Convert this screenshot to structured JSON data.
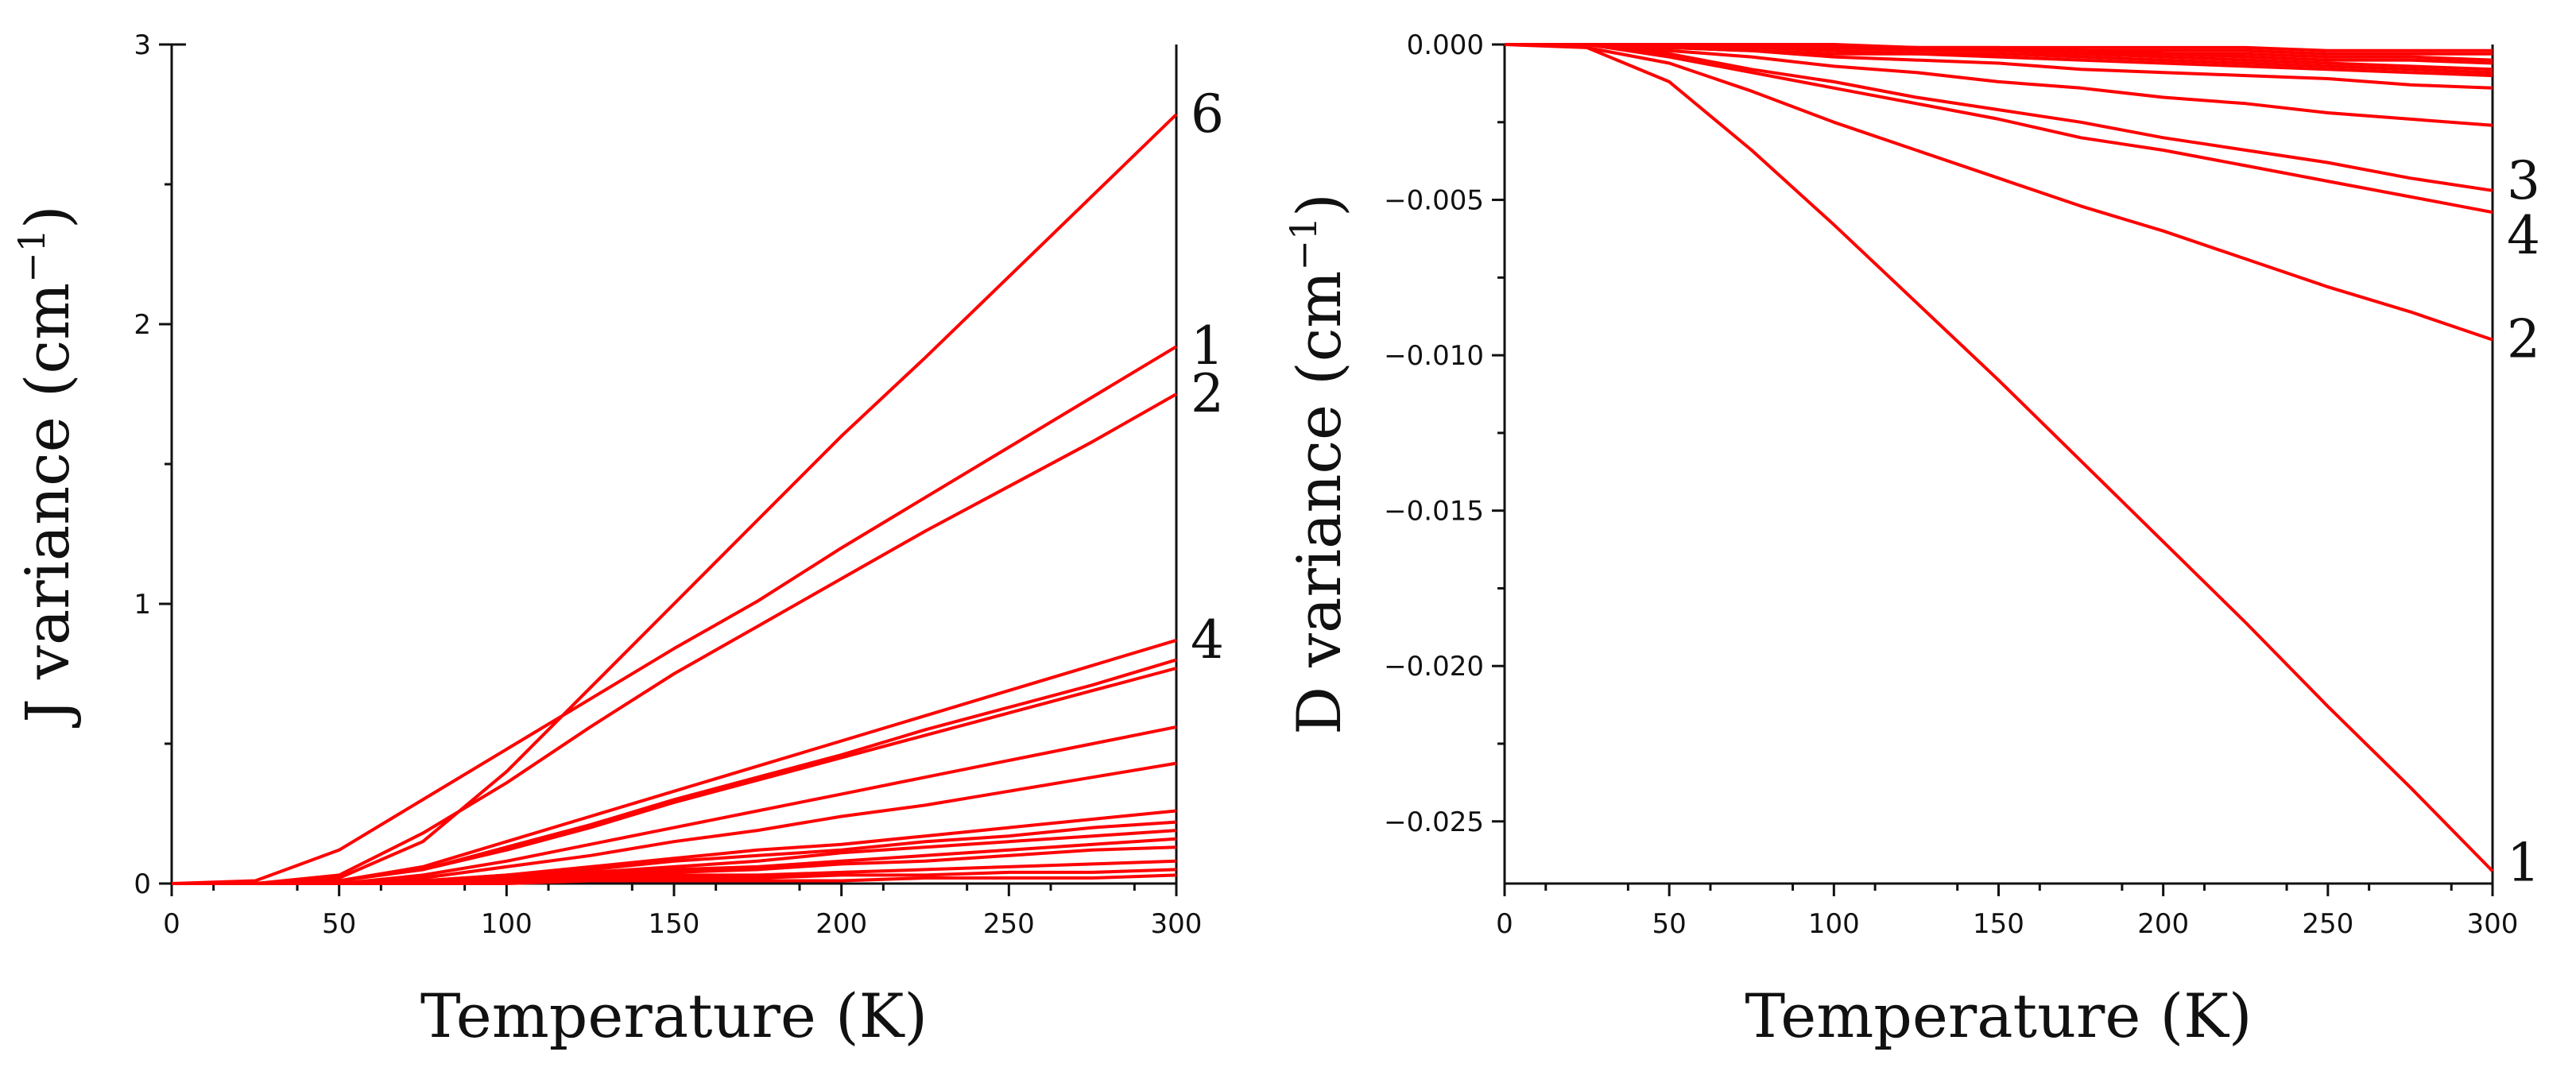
{
  "chart_data": [
    {
      "type": "line",
      "xlabel": "Temperature (K)",
      "ylabel": "J variance (cm",
      "ylabel_sup": "−1",
      "ylabel_close": ")",
      "xlim": [
        0,
        300
      ],
      "ylim": [
        0,
        3
      ],
      "xticks": [
        0,
        50,
        100,
        150,
        200,
        250,
        300
      ],
      "yticks": [
        0,
        1,
        2,
        3
      ],
      "xtick_labels": [
        "0",
        "50",
        "100",
        "150",
        "200",
        "250",
        "300"
      ],
      "ytick_labels": [
        "0",
        "1",
        "2",
        "3"
      ],
      "color": "#ff0000",
      "series": [
        {
          "name": "6",
          "x": [
            0,
            25,
            50,
            75,
            100,
            125,
            150,
            175,
            200,
            225,
            250,
            275,
            300
          ],
          "y": [
            0,
            0.0,
            0.02,
            0.15,
            0.4,
            0.7,
            1.0,
            1.3,
            1.6,
            1.88,
            2.17,
            2.46,
            2.75
          ]
        },
        {
          "name": "1",
          "x": [
            0,
            25,
            50,
            75,
            100,
            125,
            150,
            175,
            200,
            225,
            250,
            275,
            300
          ],
          "y": [
            0,
            0.01,
            0.12,
            0.3,
            0.48,
            0.66,
            0.84,
            1.01,
            1.2,
            1.38,
            1.56,
            1.74,
            1.92
          ]
        },
        {
          "name": "2",
          "x": [
            0,
            25,
            50,
            75,
            100,
            125,
            150,
            175,
            200,
            225,
            250,
            275,
            300
          ],
          "y": [
            0,
            0.0,
            0.03,
            0.18,
            0.36,
            0.56,
            0.75,
            0.92,
            1.09,
            1.26,
            1.42,
            1.58,
            1.75
          ]
        },
        {
          "name": "4",
          "x": [
            0,
            25,
            50,
            75,
            100,
            125,
            150,
            175,
            200,
            225,
            250,
            275,
            300
          ],
          "y": [
            0,
            0.0,
            0.01,
            0.06,
            0.15,
            0.24,
            0.33,
            0.42,
            0.51,
            0.6,
            0.69,
            0.78,
            0.87
          ]
        },
        {
          "name": "",
          "x": [
            0,
            25,
            50,
            75,
            100,
            125,
            150,
            175,
            200,
            225,
            250,
            275,
            300
          ],
          "y": [
            0,
            0.0,
            0.01,
            0.05,
            0.13,
            0.21,
            0.3,
            0.38,
            0.46,
            0.55,
            0.63,
            0.71,
            0.8
          ]
        },
        {
          "name": "",
          "x": [
            0,
            25,
            50,
            75,
            100,
            125,
            150,
            175,
            200,
            225,
            250,
            275,
            300
          ],
          "y": [
            0,
            0.0,
            0.01,
            0.05,
            0.12,
            0.2,
            0.29,
            0.37,
            0.45,
            0.53,
            0.61,
            0.69,
            0.77
          ]
        },
        {
          "name": "",
          "x": [
            0,
            25,
            50,
            75,
            100,
            125,
            150,
            175,
            200,
            225,
            250,
            275,
            300
          ],
          "y": [
            0,
            0.0,
            0.0,
            0.03,
            0.08,
            0.14,
            0.2,
            0.26,
            0.32,
            0.38,
            0.44,
            0.5,
            0.56
          ]
        },
        {
          "name": "",
          "x": [
            0,
            25,
            50,
            75,
            100,
            125,
            150,
            175,
            200,
            225,
            250,
            275,
            300
          ],
          "y": [
            0,
            0.0,
            0.0,
            0.02,
            0.06,
            0.1,
            0.15,
            0.19,
            0.24,
            0.28,
            0.33,
            0.38,
            0.43
          ]
        },
        {
          "name": "",
          "x": [
            0,
            25,
            50,
            75,
            100,
            125,
            150,
            175,
            200,
            225,
            250,
            275,
            300
          ],
          "y": [
            0,
            0.0,
            0.0,
            0.01,
            0.03,
            0.06,
            0.09,
            0.12,
            0.14,
            0.17,
            0.2,
            0.23,
            0.26
          ]
        },
        {
          "name": "",
          "x": [
            0,
            25,
            50,
            75,
            100,
            125,
            150,
            175,
            200,
            225,
            250,
            275,
            300
          ],
          "y": [
            0,
            0.0,
            0.0,
            0.01,
            0.03,
            0.05,
            0.08,
            0.1,
            0.12,
            0.15,
            0.17,
            0.2,
            0.22
          ]
        },
        {
          "name": "",
          "x": [
            0,
            25,
            50,
            75,
            100,
            125,
            150,
            175,
            200,
            225,
            250,
            275,
            300
          ],
          "y": [
            0,
            0.0,
            0.0,
            0.01,
            0.02,
            0.04,
            0.06,
            0.08,
            0.11,
            0.13,
            0.15,
            0.17,
            0.19
          ]
        },
        {
          "name": "",
          "x": [
            0,
            25,
            50,
            75,
            100,
            125,
            150,
            175,
            200,
            225,
            250,
            275,
            300
          ],
          "y": [
            0,
            0.0,
            0.0,
            0.01,
            0.02,
            0.03,
            0.05,
            0.06,
            0.08,
            0.1,
            0.12,
            0.14,
            0.16
          ]
        },
        {
          "name": "",
          "x": [
            0,
            25,
            50,
            75,
            100,
            125,
            150,
            175,
            200,
            225,
            250,
            275,
            300
          ],
          "y": [
            0,
            0.0,
            0.0,
            0.0,
            0.02,
            0.03,
            0.04,
            0.05,
            0.07,
            0.08,
            0.1,
            0.12,
            0.13
          ]
        },
        {
          "name": "",
          "x": [
            0,
            25,
            50,
            75,
            100,
            125,
            150,
            175,
            200,
            225,
            250,
            275,
            300
          ],
          "y": [
            0,
            0.0,
            0.0,
            0.0,
            0.01,
            0.02,
            0.03,
            0.03,
            0.04,
            0.05,
            0.06,
            0.07,
            0.08
          ]
        },
        {
          "name": "",
          "x": [
            0,
            25,
            50,
            75,
            100,
            125,
            150,
            175,
            200,
            225,
            250,
            275,
            300
          ],
          "y": [
            0,
            0.0,
            0.0,
            0.0,
            0.01,
            0.01,
            0.02,
            0.02,
            0.03,
            0.03,
            0.04,
            0.04,
            0.05
          ]
        },
        {
          "name": "",
          "x": [
            0,
            25,
            50,
            75,
            100,
            125,
            150,
            175,
            200,
            225,
            250,
            275,
            300
          ],
          "y": [
            0,
            0.0,
            0.0,
            0.0,
            0.0,
            0.01,
            0.01,
            0.01,
            0.01,
            0.02,
            0.02,
            0.02,
            0.03
          ]
        }
      ]
    },
    {
      "type": "line",
      "xlabel": "Temperature (K)",
      "ylabel": "D variance (cm",
      "ylabel_sup": "−1",
      "ylabel_close": ")",
      "xlim": [
        0,
        300
      ],
      "ylim": [
        -0.027,
        0.0
      ],
      "xticks": [
        0,
        50,
        100,
        150,
        200,
        250,
        300
      ],
      "yticks": [
        0.0,
        -0.005,
        -0.01,
        -0.015,
        -0.02,
        -0.025
      ],
      "xtick_labels": [
        "0",
        "50",
        "100",
        "150",
        "200",
        "250",
        "300"
      ],
      "ytick_labels": [
        "0.000",
        "−0.005",
        "−0.010",
        "−0.015",
        "−0.020",
        "−0.025"
      ],
      "color": "#ff0000",
      "series": [
        {
          "name": "1",
          "x": [
            0,
            20,
            25,
            50,
            75,
            100,
            125,
            150,
            175,
            200,
            225,
            250,
            275,
            300
          ],
          "y": [
            0,
            0.0,
            -0.0001,
            -0.0012,
            -0.0034,
            -0.0058,
            -0.0083,
            -0.0108,
            -0.0134,
            -0.016,
            -0.0186,
            -0.0213,
            -0.0239,
            -0.0266
          ]
        },
        {
          "name": "2",
          "x": [
            0,
            25,
            50,
            75,
            100,
            125,
            150,
            175,
            200,
            225,
            250,
            275,
            300
          ],
          "y": [
            0,
            -0.0001,
            -0.0006,
            -0.0015,
            -0.0025,
            -0.0034,
            -0.0043,
            -0.0052,
            -0.006,
            -0.0069,
            -0.0078,
            -0.0086,
            -0.0095
          ]
        },
        {
          "name": "4",
          "x": [
            0,
            25,
            50,
            75,
            100,
            125,
            150,
            175,
            200,
            225,
            250,
            275,
            300
          ],
          "y": [
            0,
            0.0,
            -0.0004,
            -0.0009,
            -0.0014,
            -0.0019,
            -0.0024,
            -0.003,
            -0.0034,
            -0.0039,
            -0.0044,
            -0.0049,
            -0.0054
          ]
        },
        {
          "name": "3",
          "x": [
            0,
            25,
            50,
            75,
            100,
            125,
            150,
            175,
            200,
            225,
            250,
            275,
            300
          ],
          "y": [
            0,
            0.0,
            -0.0003,
            -0.0008,
            -0.0012,
            -0.0017,
            -0.0021,
            -0.0025,
            -0.003,
            -0.0034,
            -0.0038,
            -0.0043,
            -0.0047
          ]
        },
        {
          "name": "",
          "x": [
            0,
            25,
            50,
            75,
            100,
            125,
            150,
            175,
            200,
            225,
            250,
            275,
            300
          ],
          "y": [
            0,
            0.0,
            -0.0002,
            -0.0004,
            -0.0007,
            -0.0009,
            -0.0012,
            -0.0014,
            -0.0017,
            -0.0019,
            -0.0022,
            -0.0024,
            -0.0026
          ]
        },
        {
          "name": "",
          "x": [
            0,
            25,
            50,
            75,
            100,
            125,
            150,
            175,
            200,
            225,
            250,
            275,
            300
          ],
          "y": [
            0,
            0.0,
            -0.0001,
            -0.0002,
            -0.0004,
            -0.0005,
            -0.0006,
            -0.0008,
            -0.0009,
            -0.001,
            -0.0011,
            -0.0013,
            -0.0014
          ]
        },
        {
          "name": "",
          "x": [
            0,
            25,
            50,
            75,
            100,
            125,
            150,
            175,
            200,
            225,
            250,
            275,
            300
          ],
          "y": [
            0,
            0.0,
            -0.0001,
            -0.0002,
            -0.0003,
            -0.0003,
            -0.0004,
            -0.0005,
            -0.0006,
            -0.0007,
            -0.0008,
            -0.0009,
            -0.001
          ]
        },
        {
          "name": "",
          "x": [
            0,
            25,
            50,
            75,
            100,
            125,
            150,
            175,
            200,
            225,
            250,
            275,
            300
          ],
          "y": [
            0,
            0.0,
            -0.0001,
            -0.0001,
            -0.0002,
            -0.0003,
            -0.0003,
            -0.0004,
            -0.0005,
            -0.0006,
            -0.0007,
            -0.0008,
            -0.0009
          ]
        },
        {
          "name": "",
          "x": [
            0,
            25,
            50,
            75,
            100,
            125,
            150,
            175,
            200,
            225,
            250,
            275,
            300
          ],
          "y": [
            0,
            0.0,
            0.0,
            -0.0001,
            -0.0001,
            -0.0002,
            -0.0002,
            -0.0003,
            -0.0004,
            -0.0005,
            -0.0006,
            -0.0007,
            -0.0008
          ]
        },
        {
          "name": "",
          "x": [
            0,
            25,
            50,
            75,
            100,
            125,
            150,
            175,
            200,
            225,
            250,
            275,
            300
          ],
          "y": [
            0,
            0.0,
            0.0,
            -0.0001,
            -0.0001,
            -0.0002,
            -0.0002,
            -0.0003,
            -0.0003,
            -0.0004,
            -0.0005,
            -0.0005,
            -0.0006
          ]
        },
        {
          "name": "",
          "x": [
            0,
            25,
            50,
            75,
            100,
            125,
            150,
            175,
            200,
            225,
            250,
            275,
            300
          ],
          "y": [
            0,
            0.0,
            0.0,
            0.0,
            -0.0001,
            -0.0001,
            -0.0002,
            -0.0002,
            -0.0003,
            -0.0003,
            -0.0004,
            -0.0004,
            -0.0005
          ]
        },
        {
          "name": "",
          "x": [
            0,
            25,
            50,
            75,
            100,
            125,
            150,
            175,
            200,
            225,
            250,
            275,
            300
          ],
          "y": [
            0,
            0.0,
            0.0,
            0.0,
            -0.0001,
            -0.0001,
            -0.0001,
            -0.0002,
            -0.0002,
            -0.0002,
            -0.0003,
            -0.0003,
            -0.0003
          ]
        },
        {
          "name": "",
          "x": [
            0,
            25,
            50,
            75,
            100,
            125,
            150,
            175,
            200,
            225,
            250,
            275,
            300
          ],
          "y": [
            0,
            0.0,
            0.0,
            0.0,
            0.0,
            -0.0001,
            -0.0001,
            -0.0001,
            -0.0001,
            -0.0001,
            -0.0002,
            -0.0002,
            -0.0002
          ]
        }
      ]
    }
  ]
}
